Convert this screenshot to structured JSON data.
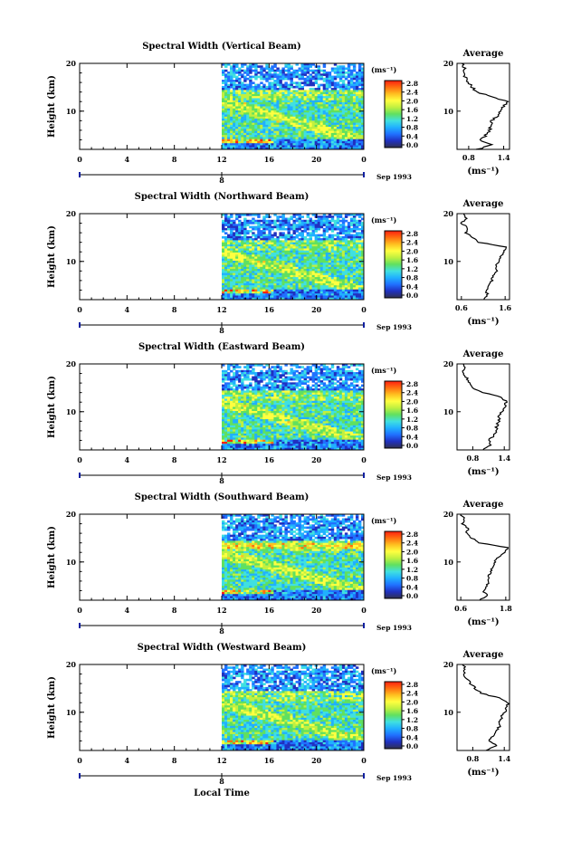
{
  "figure": {
    "xlabel": "Local Time",
    "date_label": "Sep 1993",
    "day_marker": "8",
    "unit_label": "(ms⁻¹)",
    "avg_title": "Average",
    "avg_xlabel": "(ms⁻¹)",
    "height_label": "Height (km)",
    "x_ticks": [
      "0",
      "4",
      "8",
      "12",
      "16",
      "20",
      "0"
    ],
    "y_ticks": [
      "10",
      "20"
    ],
    "colorbar_ticks": [
      "0.0",
      "0.4",
      "0.8",
      "1.2",
      "1.6",
      "2.0",
      "2.4",
      "2.8"
    ],
    "colorbar_colors": [
      "#303050",
      "#2030c0",
      "#2070ff",
      "#20b0ff",
      "#40e0e0",
      "#60e060",
      "#c0f040",
      "#ffff40",
      "#ffc020",
      "#ff7010",
      "#ff2010"
    ]
  },
  "chart_data": [
    {
      "type": "heatmap",
      "title": "Spectral Width (Vertical Beam)",
      "xlabel": "Local Time",
      "ylabel": "Height (km)",
      "xlim": [
        0,
        24
      ],
      "ylim": [
        2,
        20
      ],
      "clim": [
        0.0,
        2.8
      ],
      "data_start_hour": 12,
      "average_profile": {
        "xlim": [
          0.6,
          1.5
        ],
        "xticks": [
          "0.8",
          "1.4"
        ],
        "height": [
          2,
          3,
          4,
          5,
          6,
          7,
          8,
          9,
          10,
          11,
          12,
          13,
          14,
          15,
          16,
          17,
          18,
          19,
          20
        ],
        "value": [
          0.95,
          1.2,
          1.0,
          1.1,
          1.15,
          1.2,
          1.2,
          1.3,
          1.35,
          1.4,
          1.48,
          1.2,
          0.95,
          0.85,
          0.8,
          0.75,
          0.7,
          0.72,
          0.68
        ]
      }
    },
    {
      "type": "heatmap",
      "title": "Spectral Width (Northward Beam)",
      "xlabel": "Local Time",
      "ylabel": "Height (km)",
      "xlim": [
        0,
        24
      ],
      "ylim": [
        2,
        20
      ],
      "clim": [
        0.0,
        2.8
      ],
      "data_start_hour": 12,
      "average_profile": {
        "xlim": [
          0.5,
          1.7
        ],
        "xticks": [
          "0.6",
          "1.6"
        ],
        "height": [
          2,
          3,
          4,
          5,
          6,
          7,
          8,
          9,
          10,
          11,
          12,
          13,
          14,
          15,
          16,
          17,
          18,
          19,
          20
        ],
        "value": [
          1.1,
          1.2,
          1.15,
          1.25,
          1.3,
          1.3,
          1.4,
          1.4,
          1.45,
          1.5,
          1.55,
          1.65,
          1.0,
          0.85,
          0.7,
          0.75,
          0.6,
          0.7,
          0.65
        ]
      }
    },
    {
      "type": "heatmap",
      "title": "Spectral Width (Eastward Beam)",
      "xlabel": "Local Time",
      "ylabel": "Height (km)",
      "xlim": [
        0,
        24
      ],
      "ylim": [
        2,
        20
      ],
      "clim": [
        0.0,
        2.8
      ],
      "data_start_hour": 12,
      "average_profile": {
        "xlim": [
          0.5,
          1.5
        ],
        "xticks": [
          "0.8",
          "1.4"
        ],
        "height": [
          2,
          3,
          4,
          5,
          6,
          7,
          8,
          9,
          10,
          11,
          12,
          13,
          14,
          15,
          16,
          17,
          18,
          19,
          20
        ],
        "value": [
          1.0,
          1.15,
          1.1,
          1.2,
          1.25,
          1.25,
          1.3,
          1.3,
          1.35,
          1.4,
          1.45,
          1.35,
          1.0,
          0.8,
          0.75,
          0.7,
          0.6,
          0.65,
          0.62
        ]
      }
    },
    {
      "type": "heatmap",
      "title": "Spectral Width (Southward Beam)",
      "xlabel": "Local Time",
      "ylabel": "Height (km)",
      "xlim": [
        0,
        24
      ],
      "ylim": [
        2,
        20
      ],
      "clim": [
        0.0,
        2.8
      ],
      "data_start_hour": 12,
      "average_profile": {
        "xlim": [
          0.5,
          1.9
        ],
        "xticks": [
          "0.6",
          "1.8"
        ],
        "height": [
          2,
          3,
          4,
          5,
          6,
          7,
          8,
          9,
          10,
          11,
          12,
          13,
          14,
          15,
          16,
          17,
          18,
          19,
          20
        ],
        "value": [
          1.1,
          1.3,
          1.2,
          1.3,
          1.35,
          1.35,
          1.4,
          1.45,
          1.5,
          1.6,
          1.75,
          1.85,
          1.1,
          0.9,
          0.75,
          0.8,
          0.65,
          0.7,
          0.6
        ]
      }
    },
    {
      "type": "heatmap",
      "title": "Spectral Width (Westward Beam)",
      "xlabel": "Local Time",
      "ylabel": "Height (km)",
      "xlim": [
        0,
        24
      ],
      "ylim": [
        2,
        20
      ],
      "clim": [
        0.0,
        2.8
      ],
      "data_start_hour": 12,
      "average_profile": {
        "xlim": [
          0.5,
          1.5
        ],
        "xticks": [
          "0.8",
          "1.4"
        ],
        "height": [
          2,
          3,
          4,
          5,
          6,
          7,
          8,
          9,
          10,
          11,
          12,
          13,
          14,
          15,
          16,
          17,
          18,
          19,
          20
        ],
        "value": [
          1.05,
          1.25,
          1.1,
          1.2,
          1.25,
          1.3,
          1.3,
          1.35,
          1.4,
          1.45,
          1.48,
          1.3,
          0.95,
          0.85,
          0.75,
          0.7,
          0.62,
          0.66,
          0.6
        ]
      }
    }
  ]
}
